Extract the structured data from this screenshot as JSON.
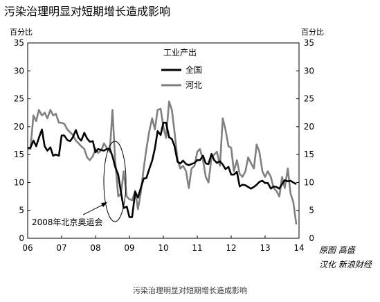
{
  "page": {
    "caption": "污染治理明显对短期增长造成影响"
  },
  "chart_data": {
    "type": "line",
    "title": "污染治理明显对短期增长造成影响",
    "ylabel_left": "百分比",
    "ylabel_right": "百分比",
    "ylim": [
      0,
      35
    ],
    "yticks": [
      0,
      5,
      10,
      15,
      20,
      25,
      30,
      35
    ],
    "xlim": [
      2006.0,
      2014.0
    ],
    "xticks": [
      {
        "value": 2006,
        "label": "06"
      },
      {
        "value": 2007,
        "label": "07"
      },
      {
        "value": 2008,
        "label": "08"
      },
      {
        "value": 2009,
        "label": "09"
      },
      {
        "value": 2010,
        "label": "10"
      },
      {
        "value": 2011,
        "label": "11"
      },
      {
        "value": 2012,
        "label": "12"
      },
      {
        "value": 2013,
        "label": "13"
      },
      {
        "value": 2014,
        "label": "14"
      }
    ],
    "legend": {
      "title": "工业产出",
      "position": "top-center"
    },
    "grid": false,
    "annotation": {
      "text": "2008年北京奥运会"
    },
    "source": [
      "原图 高盛",
      "汉化 新浪财经"
    ],
    "series": [
      {
        "name": "全国",
        "color": "#000000",
        "points": [
          [
            2006.0,
            16.2
          ],
          [
            2006.08,
            16.2
          ],
          [
            2006.17,
            17.5
          ],
          [
            2006.25,
            16.5
          ],
          [
            2006.33,
            18.0
          ],
          [
            2006.42,
            19.5
          ],
          [
            2006.5,
            16.5
          ],
          [
            2006.58,
            15.7
          ],
          [
            2006.67,
            16.3
          ],
          [
            2006.75,
            14.8
          ],
          [
            2006.83,
            15.0
          ],
          [
            2006.92,
            14.8
          ],
          [
            2007.0,
            18.4
          ],
          [
            2007.08,
            18.4
          ],
          [
            2007.17,
            17.6
          ],
          [
            2007.25,
            17.4
          ],
          [
            2007.33,
            18.1
          ],
          [
            2007.42,
            19.4
          ],
          [
            2007.5,
            18.0
          ],
          [
            2007.58,
            17.5
          ],
          [
            2007.67,
            18.9
          ],
          [
            2007.75,
            17.9
          ],
          [
            2007.83,
            17.3
          ],
          [
            2007.92,
            17.4
          ],
          [
            2008.0,
            15.4
          ],
          [
            2008.08,
            16.0
          ],
          [
            2008.17,
            15.8
          ],
          [
            2008.25,
            15.7
          ],
          [
            2008.33,
            16.0
          ],
          [
            2008.42,
            16.0
          ],
          [
            2008.5,
            14.7
          ],
          [
            2008.58,
            12.8
          ],
          [
            2008.67,
            11.4
          ],
          [
            2008.75,
            8.2
          ],
          [
            2008.83,
            5.4
          ],
          [
            2008.92,
            5.7
          ],
          [
            2009.0,
            3.8
          ],
          [
            2009.08,
            3.8
          ],
          [
            2009.17,
            8.3
          ],
          [
            2009.25,
            7.3
          ],
          [
            2009.33,
            8.9
          ],
          [
            2009.42,
            10.7
          ],
          [
            2009.5,
            10.8
          ],
          [
            2009.58,
            12.3
          ],
          [
            2009.67,
            13.9
          ],
          [
            2009.75,
            16.1
          ],
          [
            2009.83,
            19.2
          ],
          [
            2009.92,
            18.5
          ],
          [
            2010.0,
            20.7
          ],
          [
            2010.08,
            20.7
          ],
          [
            2010.17,
            18.1
          ],
          [
            2010.25,
            17.8
          ],
          [
            2010.33,
            16.5
          ],
          [
            2010.42,
            13.7
          ],
          [
            2010.5,
            13.4
          ],
          [
            2010.58,
            13.9
          ],
          [
            2010.67,
            13.3
          ],
          [
            2010.75,
            13.1
          ],
          [
            2010.83,
            13.3
          ],
          [
            2010.92,
            13.5
          ],
          [
            2011.0,
            14.0
          ],
          [
            2011.08,
            14.0
          ],
          [
            2011.17,
            14.8
          ],
          [
            2011.25,
            13.4
          ],
          [
            2011.33,
            13.3
          ],
          [
            2011.42,
            15.1
          ],
          [
            2011.5,
            14.0
          ],
          [
            2011.58,
            13.5
          ],
          [
            2011.67,
            13.8
          ],
          [
            2011.75,
            13.2
          ],
          [
            2011.83,
            12.4
          ],
          [
            2011.92,
            12.8
          ],
          [
            2012.0,
            11.4
          ],
          [
            2012.08,
            11.4
          ],
          [
            2012.17,
            11.9
          ],
          [
            2012.25,
            9.3
          ],
          [
            2012.33,
            9.6
          ],
          [
            2012.42,
            9.5
          ],
          [
            2012.5,
            9.2
          ],
          [
            2012.58,
            8.9
          ],
          [
            2012.67,
            9.2
          ],
          [
            2012.75,
            9.6
          ],
          [
            2012.83,
            10.1
          ],
          [
            2012.92,
            10.3
          ],
          [
            2013.0,
            9.9
          ],
          [
            2013.08,
            9.9
          ],
          [
            2013.17,
            8.9
          ],
          [
            2013.25,
            9.3
          ],
          [
            2013.33,
            9.2
          ],
          [
            2013.42,
            8.9
          ],
          [
            2013.5,
            9.7
          ],
          [
            2013.58,
            10.4
          ],
          [
            2013.67,
            10.2
          ],
          [
            2013.75,
            10.3
          ],
          [
            2013.83,
            10.0
          ],
          [
            2013.92,
            9.7
          ]
        ]
      },
      {
        "name": "河北",
        "color": "#808080",
        "points": [
          [
            2006.0,
            16.0
          ],
          [
            2006.08,
            16.0
          ],
          [
            2006.17,
            22.0
          ],
          [
            2006.25,
            21.0
          ],
          [
            2006.33,
            23.0
          ],
          [
            2006.42,
            22.0
          ],
          [
            2006.5,
            22.5
          ],
          [
            2006.58,
            21.5
          ],
          [
            2006.67,
            23.0
          ],
          [
            2006.75,
            22.0
          ],
          [
            2006.83,
            22.3
          ],
          [
            2006.92,
            20.7
          ],
          [
            2007.0,
            20.7
          ],
          [
            2007.08,
            20.5
          ],
          [
            2007.17,
            19.5
          ],
          [
            2007.25,
            19.0
          ],
          [
            2007.33,
            18.5
          ],
          [
            2007.42,
            17.5
          ],
          [
            2007.5,
            17.0
          ],
          [
            2007.58,
            16.5
          ],
          [
            2007.67,
            16.0
          ],
          [
            2007.75,
            14.5
          ],
          [
            2007.83,
            14.0
          ],
          [
            2007.92,
            14.7
          ],
          [
            2008.0,
            16.0
          ],
          [
            2008.08,
            15.3
          ],
          [
            2008.17,
            15.8
          ],
          [
            2008.25,
            17.0
          ],
          [
            2008.33,
            16.2
          ],
          [
            2008.42,
            15.5
          ],
          [
            2008.5,
            23.0
          ],
          [
            2008.58,
            14.0
          ],
          [
            2008.67,
            7.5
          ],
          [
            2008.75,
            8.0
          ],
          [
            2008.83,
            12.0
          ],
          [
            2008.92,
            7.5
          ],
          [
            2009.0,
            7.0
          ],
          [
            2009.08,
            6.8
          ],
          [
            2009.17,
            8.5
          ],
          [
            2009.25,
            5.2
          ],
          [
            2009.33,
            8.0
          ],
          [
            2009.42,
            12.5
          ],
          [
            2009.5,
            16.0
          ],
          [
            2009.58,
            19.0
          ],
          [
            2009.67,
            21.5
          ],
          [
            2009.75,
            19.5
          ],
          [
            2009.83,
            23.0
          ],
          [
            2009.92,
            23.2
          ],
          [
            2010.0,
            20.0
          ],
          [
            2010.08,
            18.0
          ],
          [
            2010.17,
            24.5
          ],
          [
            2010.25,
            23.0
          ],
          [
            2010.33,
            19.0
          ],
          [
            2010.42,
            14.0
          ],
          [
            2010.5,
            12.5
          ],
          [
            2010.58,
            13.0
          ],
          [
            2010.67,
            12.0
          ],
          [
            2010.75,
            9.0
          ],
          [
            2010.83,
            12.5
          ],
          [
            2010.92,
            13.0
          ],
          [
            2011.0,
            15.5
          ],
          [
            2011.08,
            16.0
          ],
          [
            2011.17,
            14.0
          ],
          [
            2011.25,
            11.0
          ],
          [
            2011.33,
            10.0
          ],
          [
            2011.42,
            14.5
          ],
          [
            2011.5,
            15.0
          ],
          [
            2011.58,
            15.5
          ],
          [
            2011.67,
            13.0
          ],
          [
            2011.75,
            21.5
          ],
          [
            2011.83,
            19.5
          ],
          [
            2011.92,
            16.5
          ],
          [
            2012.0,
            16.2
          ],
          [
            2012.08,
            12.0
          ],
          [
            2012.17,
            14.0
          ],
          [
            2012.25,
            11.5
          ],
          [
            2012.33,
            11.0
          ],
          [
            2012.42,
            12.0
          ],
          [
            2012.5,
            14.5
          ],
          [
            2012.58,
            13.5
          ],
          [
            2012.67,
            12.5
          ],
          [
            2012.75,
            16.8
          ],
          [
            2012.83,
            15.5
          ],
          [
            2012.92,
            12.0
          ],
          [
            2013.0,
            11.0
          ],
          [
            2013.08,
            12.0
          ],
          [
            2013.17,
            11.0
          ],
          [
            2013.25,
            9.0
          ],
          [
            2013.33,
            8.5
          ],
          [
            2013.42,
            7.5
          ],
          [
            2013.5,
            11.0
          ],
          [
            2013.58,
            9.0
          ],
          [
            2013.67,
            12.5
          ],
          [
            2013.75,
            8.0
          ],
          [
            2013.83,
            6.5
          ],
          [
            2013.92,
            2.5
          ]
        ]
      }
    ]
  }
}
